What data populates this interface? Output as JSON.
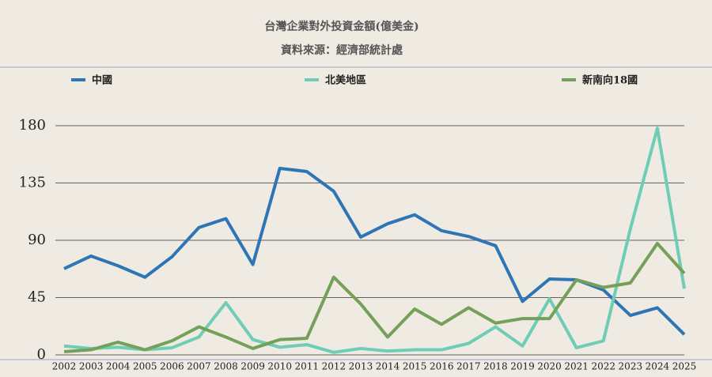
{
  "chart_data": {
    "type": "line",
    "title": "台灣企業對外投資金額(億美金)",
    "subtitle": "資料來源：經濟部統計處",
    "categories": [
      "2002",
      "2003",
      "2004",
      "2005",
      "2006",
      "2007",
      "2008",
      "2009",
      "2010",
      "2011",
      "2012",
      "2013",
      "2014",
      "2015",
      "2016",
      "2017",
      "2018",
      "2019",
      "2020",
      "2021",
      "2022",
      "2023",
      "2024",
      "2025"
    ],
    "series": [
      {
        "name": "中國",
        "color": "#2e75b6",
        "values": [
          67.7,
          77.6,
          70,
          61,
          77,
          100,
          107,
          71,
          146.5,
          144,
          128.5,
          92.5,
          103,
          110,
          97.5,
          93,
          85.7,
          42,
          59.6,
          59,
          51,
          31,
          37,
          16
        ]
      },
      {
        "name": "北美地區",
        "color": "#70cdb5",
        "values": [
          7,
          5,
          6,
          4,
          5.6,
          14,
          41,
          12,
          6,
          8,
          2,
          5,
          3,
          4,
          4,
          9,
          22,
          7,
          44,
          5.6,
          11,
          99,
          178,
          52
        ]
      },
      {
        "name": "新南向18國",
        "color": "#75a05a",
        "values": [
          2.5,
          4,
          10,
          4,
          11,
          22,
          14,
          5,
          12,
          13,
          61,
          40,
          14,
          36,
          24,
          37,
          25,
          28.5,
          28.5,
          59,
          53,
          56.5,
          87.5,
          64
        ]
      }
    ],
    "ylim": [
      0,
      180
    ],
    "yticks": [
      0,
      45,
      90,
      135,
      180
    ],
    "grid": true
  }
}
